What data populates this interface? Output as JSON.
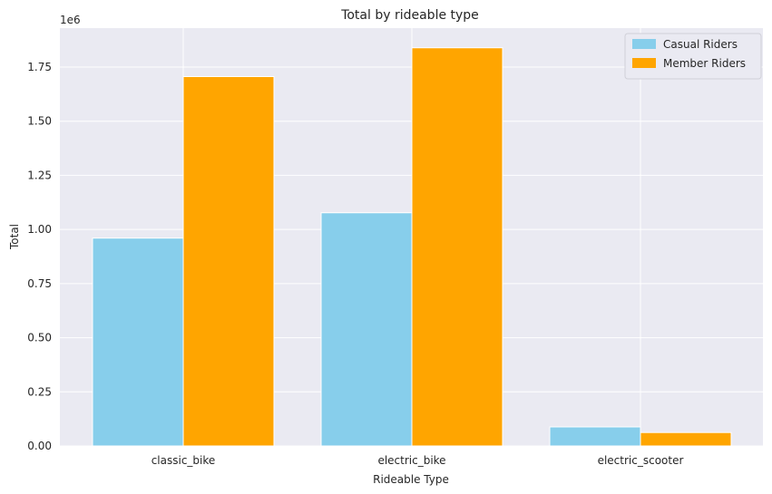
{
  "chart_data": {
    "type": "bar",
    "title": "Total by rideable type",
    "xlabel": "Rideable Type",
    "ylabel": "Total",
    "offset_label": "1e6",
    "categories": [
      "classic_bike",
      "electric_bike",
      "electric_scooter"
    ],
    "series": [
      {
        "name": "Casual Riders",
        "color": "#87ceeb",
        "values": [
          960000,
          1077000,
          88000
        ]
      },
      {
        "name": "Member Riders",
        "color": "#ffa500",
        "values": [
          1706000,
          1839000,
          62000
        ]
      }
    ],
    "ylim": [
      0,
      1.93
    ],
    "yticks": [
      {
        "value": 0.0,
        "label": "0.00"
      },
      {
        "value": 0.25,
        "label": "0.25"
      },
      {
        "value": 0.5,
        "label": "0.50"
      },
      {
        "value": 0.75,
        "label": "0.75"
      },
      {
        "value": 1.0,
        "label": "1.00"
      },
      {
        "value": 1.25,
        "label": "1.25"
      },
      {
        "value": 1.5,
        "label": "1.50"
      },
      {
        "value": 1.75,
        "label": "1.75"
      }
    ],
    "grid": true,
    "legend_position": "top-right",
    "background_color": "#eaeaf2",
    "grid_color": "#ffffff"
  }
}
